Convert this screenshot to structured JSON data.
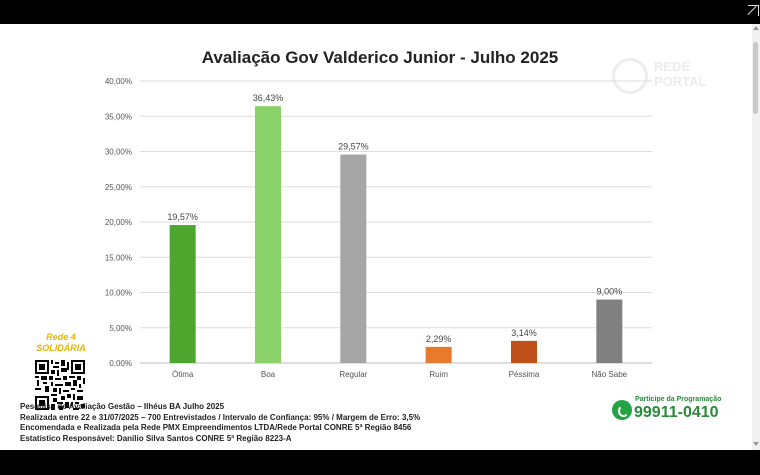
{
  "chart_data": {
    "type": "bar",
    "title": "Avaliação Gov Valderico Junior - Julho 2025",
    "categories": [
      "Ótima",
      "Boa",
      "Regular",
      "Ruim",
      "Péssima",
      "Não Sabe"
    ],
    "values": [
      19.57,
      36.43,
      29.57,
      2.29,
      3.14,
      9.0
    ],
    "data_labels": [
      "19,57%",
      "36,43%",
      "29,57%",
      "2,29%",
      "3,14%",
      "9,00%"
    ],
    "colors": [
      "#4ea62e",
      "#8ad16a",
      "#a6a6a6",
      "#e87a2e",
      "#c0501a",
      "#808080"
    ],
    "ylim": [
      0,
      40
    ],
    "yticks": [
      0,
      5,
      10,
      15,
      20,
      25,
      30,
      35,
      40
    ],
    "ytick_labels": [
      "0,00%",
      "5,00%",
      "10,00%",
      "15,00%",
      "20,00%",
      "25,00%",
      "30,00%",
      "35,00%",
      "40,00%"
    ],
    "grid": true,
    "xlabel": "",
    "ylabel": ""
  },
  "watermark": {
    "text_line1": "REDE",
    "text_line2": "PORTAL"
  },
  "brand": {
    "line1": "Rede 4",
    "line2": "SOLIDÁRIA"
  },
  "footer": {
    "line1": "Pesquisa de Avaliação Gestão – Ilhéus BA Julho 2025",
    "line2": "Realizada entre 22 e 31/07/2025 – 700 Entrevistados / Intervalo de Confiança: 95% / Margem de Erro: 3,5%",
    "line3": "Encomendada e Realizada pela Rede PMX Empreendimentos LTDA/Rede Portal CONRE 5ª Região 8456",
    "line4": "Estatístico Responsável: Danilio Silva Santos CONRE 5ª Região 8223-A"
  },
  "contact": {
    "label": "Participe da Programação",
    "number": "99911-0410"
  }
}
